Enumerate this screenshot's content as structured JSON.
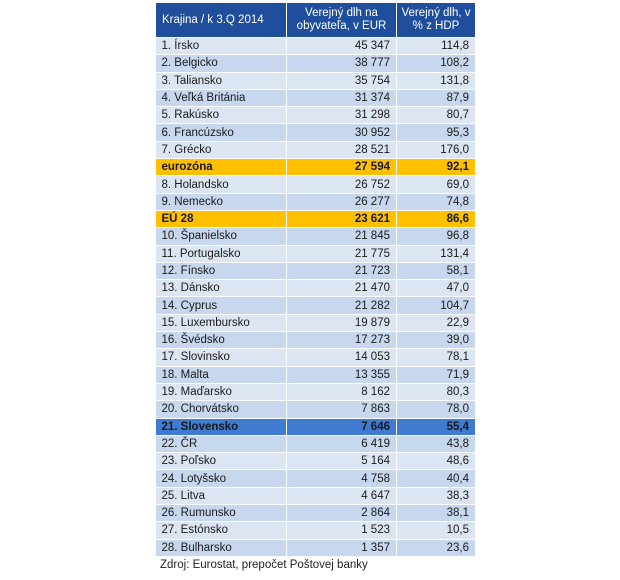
{
  "table": {
    "headers": [
      "Krajina / k 3.Q 2014",
      "Verejný dlh na obyvateľa,  v EUR",
      "Verejný dlh, v %  z HDP"
    ],
    "rows": [
      {
        "name": "1. Írsko",
        "per_capita": "45 347",
        "pct_gdp": "114,8",
        "style": "normal"
      },
      {
        "name": "2. Belgicko",
        "per_capita": "38 777",
        "pct_gdp": "108,2",
        "style": "normal"
      },
      {
        "name": "3. Taliansko",
        "per_capita": "35 754",
        "pct_gdp": "131,8",
        "style": "normal"
      },
      {
        "name": "4. Veľká Británia",
        "per_capita": "31 374",
        "pct_gdp": "87,9",
        "style": "normal"
      },
      {
        "name": "5. Rakúsko",
        "per_capita": "31 298",
        "pct_gdp": "80,7",
        "style": "normal"
      },
      {
        "name": "6. Francúzsko",
        "per_capita": "30 952",
        "pct_gdp": "95,3",
        "style": "normal"
      },
      {
        "name": "7. Grécko",
        "per_capita": "28 521",
        "pct_gdp": "176,0",
        "style": "normal"
      },
      {
        "name": "eurozóna",
        "per_capita": "27 594",
        "pct_gdp": "92,1",
        "style": "highlight-eur"
      },
      {
        "name": "8. Holandsko",
        "per_capita": "26 752",
        "pct_gdp": "69,0",
        "style": "normal"
      },
      {
        "name": "9. Nemecko",
        "per_capita": "26 277",
        "pct_gdp": "74,8",
        "style": "normal"
      },
      {
        "name": "EÚ 28",
        "per_capita": "23 621",
        "pct_gdp": "86,6",
        "style": "highlight-eur"
      },
      {
        "name": "10. Španielsko",
        "per_capita": "21 845",
        "pct_gdp": "96,8",
        "style": "normal"
      },
      {
        "name": "11. Portugalsko",
        "per_capita": "21 775",
        "pct_gdp": "131,4",
        "style": "normal"
      },
      {
        "name": "12. Fínsko",
        "per_capita": "21 723",
        "pct_gdp": "58,1",
        "style": "normal"
      },
      {
        "name": "13. Dánsko",
        "per_capita": "21 470",
        "pct_gdp": "47,0",
        "style": "normal"
      },
      {
        "name": "14. Cyprus",
        "per_capita": "21 282",
        "pct_gdp": "104,7",
        "style": "normal"
      },
      {
        "name": "15. Luxembursko",
        "per_capita": "19 879",
        "pct_gdp": "22,9",
        "style": "normal"
      },
      {
        "name": "16. Švédsko",
        "per_capita": "17 273",
        "pct_gdp": "39,0",
        "style": "normal"
      },
      {
        "name": "17. Slovinsko",
        "per_capita": "14 053",
        "pct_gdp": "78,1",
        "style": "normal"
      },
      {
        "name": "18. Malta",
        "per_capita": "13 355",
        "pct_gdp": "71,9",
        "style": "normal"
      },
      {
        "name": "19. Maďarsko",
        "per_capita": "8 162",
        "pct_gdp": "80,3",
        "style": "normal"
      },
      {
        "name": "20. Chorvátsko",
        "per_capita": "7 863",
        "pct_gdp": "78,0",
        "style": "normal"
      },
      {
        "name": "21. Slovensko",
        "per_capita": "7 646",
        "pct_gdp": "55,4",
        "style": "highlight-sk"
      },
      {
        "name": "22. ČR",
        "per_capita": "6 419",
        "pct_gdp": "43,8",
        "style": "normal"
      },
      {
        "name": "23. Poľsko",
        "per_capita": "5 164",
        "pct_gdp": "48,6",
        "style": "normal"
      },
      {
        "name": "24. Lotyšsko",
        "per_capita": "4 758",
        "pct_gdp": "40,4",
        "style": "normal"
      },
      {
        "name": "25. Litva",
        "per_capita": "4 647",
        "pct_gdp": "38,3",
        "style": "normal"
      },
      {
        "name": "26. Rumunsko",
        "per_capita": "2 864",
        "pct_gdp": "38,1",
        "style": "normal"
      },
      {
        "name": "27. Estónsko",
        "per_capita": "1 523",
        "pct_gdp": "10,5",
        "style": "normal"
      },
      {
        "name": "28. Bulharsko",
        "per_capita": "1 357",
        "pct_gdp": "23,6",
        "style": "normal"
      }
    ]
  },
  "source": "Zdroj: Eurostat,  prepočet  Poštovej  banky",
  "colors": {
    "header_bg": "#1f4e9c",
    "row_light": "#dce6f2",
    "row_dark": "#c6d7ee",
    "highlight_eur": "#ffc000",
    "highlight_sk": "#3f7bd0"
  }
}
